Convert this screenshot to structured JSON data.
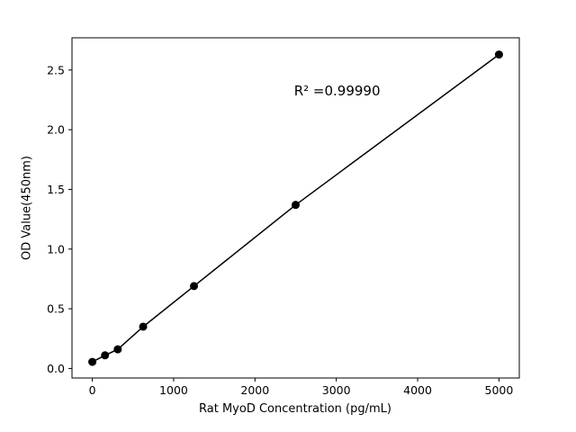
{
  "figure": {
    "background": "#ffffff"
  },
  "chart_data": {
    "type": "scatter",
    "title": "",
    "xlabel": "Rat MyoD Concentration (pg/mL)",
    "ylabel": "OD Value(450nm)",
    "x": [
      0,
      156.25,
      312.5,
      625,
      1250,
      2500,
      5000
    ],
    "y": [
      0.055,
      0.11,
      0.16,
      0.35,
      0.69,
      1.37,
      2.63
    ],
    "line": true,
    "marker": "circle",
    "color": "#000000",
    "xlim": [
      -250,
      5250
    ],
    "ylim": [
      -0.08,
      2.77
    ],
    "xticks": [
      0,
      1000,
      2000,
      3000,
      4000,
      5000
    ],
    "xtick_labels": [
      "0",
      "1000",
      "2000",
      "3000",
      "4000",
      "5000"
    ],
    "yticks": [
      0.0,
      0.5,
      1.0,
      1.5,
      2.0,
      2.5
    ],
    "ytick_labels": [
      "0.0",
      "0.5",
      "1.0",
      "1.5",
      "2.0",
      "2.5"
    ],
    "grid": false,
    "legend": null,
    "annotation": {
      "text": "R² =0.99990",
      "x": 2480,
      "y": 2.39
    }
  }
}
